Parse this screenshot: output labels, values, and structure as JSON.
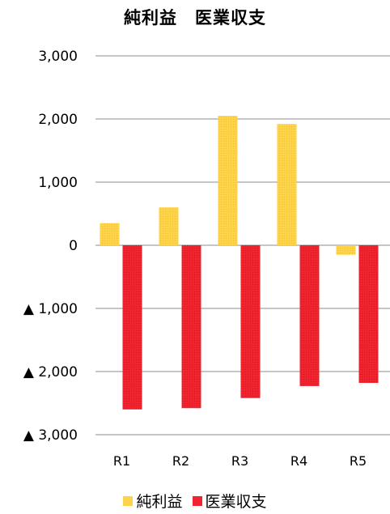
{
  "chart_data": {
    "type": "bar",
    "title": "純利益　医業収支",
    "categories": [
      "R1",
      "R2",
      "R3",
      "R4",
      "R5"
    ],
    "series": [
      {
        "name": "純利益",
        "values": [
          350,
          600,
          2050,
          1920,
          -150
        ]
      },
      {
        "name": "医業収支",
        "values": [
          -2600,
          -2580,
          -2420,
          -2230,
          -2180
        ]
      }
    ],
    "ylim": [
      -3000,
      3000
    ],
    "yticks": [
      3000,
      2000,
      1000,
      0,
      -1000,
      -2000,
      -3000
    ],
    "ytick_labels": [
      "3,000",
      "2,000",
      "1,000",
      "0",
      "▲ 1,000",
      "▲ 2,000",
      "▲ 3,000"
    ],
    "colors": {
      "純利益": "#fcd34a",
      "医業収支": "#f0242e"
    },
    "grid": true,
    "legend": "bottom"
  }
}
